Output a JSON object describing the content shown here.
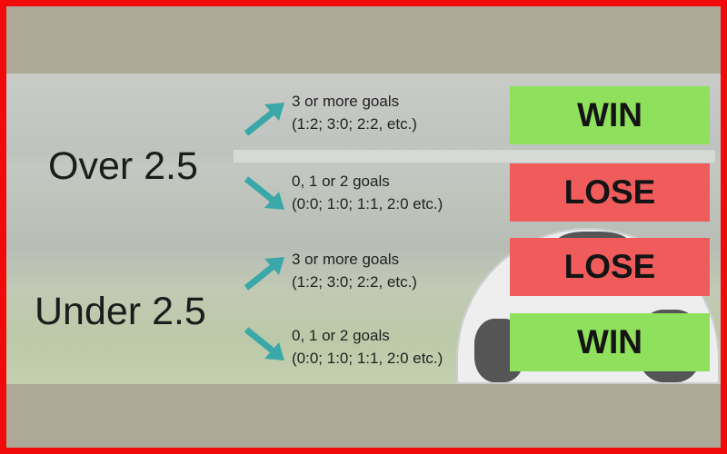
{
  "colors": {
    "border": "#f00a0a",
    "win": "#8fe05c",
    "lose": "#f05c5c",
    "arrow": "#3aa8a8",
    "band": "#aea898"
  },
  "over": {
    "label": "Over 2.5",
    "outcomes": [
      {
        "line1": "3 or more goals",
        "line2": "(1:2; 3:0; 2:2, etc.)",
        "arrow": "arrow-up-right-icon",
        "result": "WIN"
      },
      {
        "line1": "0, 1 or 2 goals",
        "line2": "(0:0; 1:0; 1:1, 2:0 etc.)",
        "arrow": "arrow-down-right-icon",
        "result": "LOSE"
      }
    ]
  },
  "under": {
    "label": "Under 2.5",
    "outcomes": [
      {
        "line1": "3 or more goals",
        "line2": "(1:2; 3:0; 2:2, etc.)",
        "arrow": "arrow-up-right-icon",
        "result": "LOSE"
      },
      {
        "line1": "0, 1 or 2 goals",
        "line2": "(0:0; 1:0; 1:1, 2:0 etc.)",
        "arrow": "arrow-down-right-icon",
        "result": "WIN"
      }
    ]
  }
}
